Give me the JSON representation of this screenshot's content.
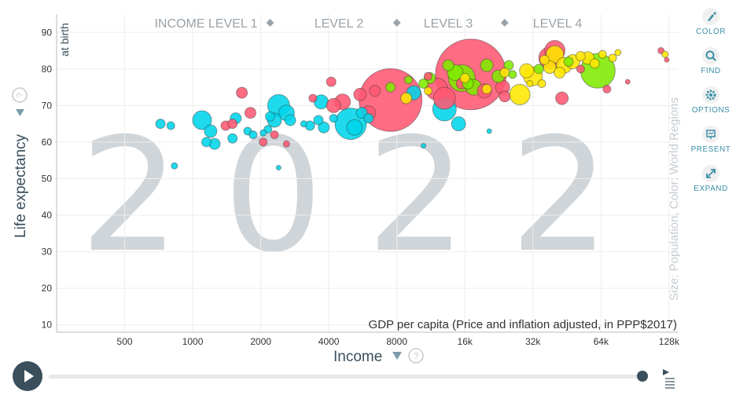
{
  "chart_data": {
    "type": "scatter",
    "year_label": "2022",
    "xlabel": "Income",
    "ylabel": "Life expectancy",
    "y_sub": "at birth",
    "x_scale": "log",
    "x_unit_note": "GDP per capita (Price and inflation adjusted, in PPP$2017)",
    "size_color_note": "Size: Population, Color: World Regions",
    "xlim": [
      250,
      140000
    ],
    "ylim": [
      8,
      95
    ],
    "x_ticks": [
      {
        "v": 500,
        "label": "500"
      },
      {
        "v": 1000,
        "label": "1000"
      },
      {
        "v": 2000,
        "label": "2000"
      },
      {
        "v": 4000,
        "label": "4000"
      },
      {
        "v": 8000,
        "label": "8000"
      },
      {
        "v": 16000,
        "label": "16k"
      },
      {
        "v": 32000,
        "label": "32k"
      },
      {
        "v": 64000,
        "label": "64k"
      },
      {
        "v": 128000,
        "label": "128k"
      }
    ],
    "y_ticks": [
      10,
      20,
      30,
      40,
      50,
      60,
      70,
      80,
      90
    ],
    "income_levels": [
      "INCOME LEVEL 1",
      "LEVEL 2",
      "LEVEL 3",
      "LEVEL 4"
    ],
    "income_level_bounds": [
      2200,
      8000,
      24000
    ],
    "grid": true,
    "legend": "none",
    "colors": {
      "africa": "#00d5e9",
      "asia": "#ff5872",
      "americas": "#7feb00",
      "europe": "#ffe700"
    },
    "series": [
      {
        "color_key": "africa",
        "points": [
          [
            720,
            65,
            6
          ],
          [
            800,
            64.5,
            5
          ],
          [
            830,
            53.5,
            4
          ],
          [
            1100,
            66,
            12
          ],
          [
            1200,
            63,
            8
          ],
          [
            1150,
            60,
            6
          ],
          [
            1250,
            59.5,
            7
          ],
          [
            1500,
            61,
            6
          ],
          [
            1550,
            66.5,
            7
          ],
          [
            1750,
            63,
            5
          ],
          [
            1850,
            62,
            5
          ],
          [
            2050,
            62.5,
            4
          ],
          [
            2150,
            63.5,
            5
          ],
          [
            2200,
            67,
            6
          ],
          [
            2300,
            66,
            9
          ],
          [
            2400,
            70,
            14
          ],
          [
            2400,
            53,
            3
          ],
          [
            2600,
            68,
            10
          ],
          [
            2700,
            66,
            7
          ],
          [
            3100,
            65,
            4
          ],
          [
            3300,
            64.5,
            6
          ],
          [
            3600,
            66,
            6
          ],
          [
            3700,
            71,
            9
          ],
          [
            3800,
            64,
            7
          ],
          [
            4200,
            66.5,
            5
          ],
          [
            5000,
            65,
            20
          ],
          [
            5200,
            64,
            10
          ],
          [
            5600,
            68,
            7
          ],
          [
            6000,
            66.5,
            6
          ],
          [
            10500,
            59,
            3
          ],
          [
            13000,
            69,
            15
          ],
          [
            15000,
            65,
            9
          ],
          [
            20500,
            63,
            3
          ],
          [
            9500,
            73.5,
            9
          ]
        ]
      },
      {
        "color_key": "asia",
        "points": [
          [
            1400,
            64.5,
            6
          ],
          [
            1800,
            68,
            7
          ],
          [
            1500,
            65,
            6
          ],
          [
            1650,
            73.5,
            7
          ],
          [
            2050,
            60,
            5
          ],
          [
            2300,
            62,
            5
          ],
          [
            2600,
            59.5,
            4
          ],
          [
            3400,
            72,
            5
          ],
          [
            4100,
            76.5,
            6
          ],
          [
            4200,
            70,
            9
          ],
          [
            4600,
            71,
            10
          ],
          [
            5500,
            73,
            8
          ],
          [
            6000,
            68,
            9
          ],
          [
            6400,
            74,
            7
          ],
          [
            7500,
            71.5,
            40
          ],
          [
            11000,
            78,
            5
          ],
          [
            12000,
            74.5,
            14
          ],
          [
            13000,
            72,
            14
          ],
          [
            15500,
            76,
            7
          ],
          [
            17000,
            78.5,
            45
          ],
          [
            19500,
            74,
            9
          ],
          [
            23500,
            75,
            9
          ],
          [
            24000,
            72.5,
            7
          ],
          [
            38000,
            83,
            14
          ],
          [
            40000,
            85,
            13
          ],
          [
            43000,
            72,
            8
          ],
          [
            52000,
            80,
            5
          ],
          [
            68000,
            74.5,
            5
          ],
          [
            84000,
            76.5,
            3
          ],
          [
            118000,
            85,
            4
          ],
          [
            125000,
            82.5,
            3
          ]
        ]
      },
      {
        "color_key": "americas",
        "points": [
          [
            7500,
            75,
            6
          ],
          [
            9000,
            77,
            5
          ],
          [
            10500,
            76,
            6
          ],
          [
            11200,
            77.5,
            7
          ],
          [
            13500,
            81,
            7
          ],
          [
            14500,
            79,
            10
          ],
          [
            15500,
            77.5,
            17
          ],
          [
            16500,
            76,
            7
          ],
          [
            17500,
            75,
            10
          ],
          [
            20000,
            81,
            8
          ],
          [
            22500,
            78,
            8
          ],
          [
            25000,
            81,
            6
          ],
          [
            26000,
            78.5,
            5
          ],
          [
            34000,
            80,
            6
          ],
          [
            46000,
            82,
            6
          ],
          [
            62000,
            79.5,
            22
          ]
        ]
      },
      {
        "color_key": "europe",
        "points": [
          [
            8800,
            72,
            7
          ],
          [
            11000,
            74,
            5
          ],
          [
            16000,
            77.5,
            6
          ],
          [
            20000,
            74.5,
            6
          ],
          [
            24000,
            79,
            6
          ],
          [
            28000,
            73,
            13
          ],
          [
            30000,
            79.5,
            9
          ],
          [
            32000,
            78,
            12
          ],
          [
            35000,
            76,
            5
          ],
          [
            36000,
            82.5,
            6
          ],
          [
            38000,
            80.5,
            8
          ],
          [
            40000,
            84,
            11
          ],
          [
            44000,
            81,
            10
          ],
          [
            48000,
            82,
            9
          ],
          [
            52000,
            83.5,
            6
          ],
          [
            56000,
            83,
            8
          ],
          [
            60000,
            81.5,
            6
          ],
          [
            65000,
            84,
            5
          ],
          [
            72000,
            83,
            5
          ],
          [
            76000,
            84.5,
            4
          ],
          [
            123000,
            84,
            4
          ],
          [
            31000,
            76,
            4
          ],
          [
            42000,
            79,
            7
          ]
        ]
      }
    ]
  },
  "toolbar": {
    "color_label": "COLOR",
    "find_label": "FIND",
    "options_label": "OPTIONS",
    "present_label": "PRESENT",
    "expand_label": "EXPAND"
  }
}
